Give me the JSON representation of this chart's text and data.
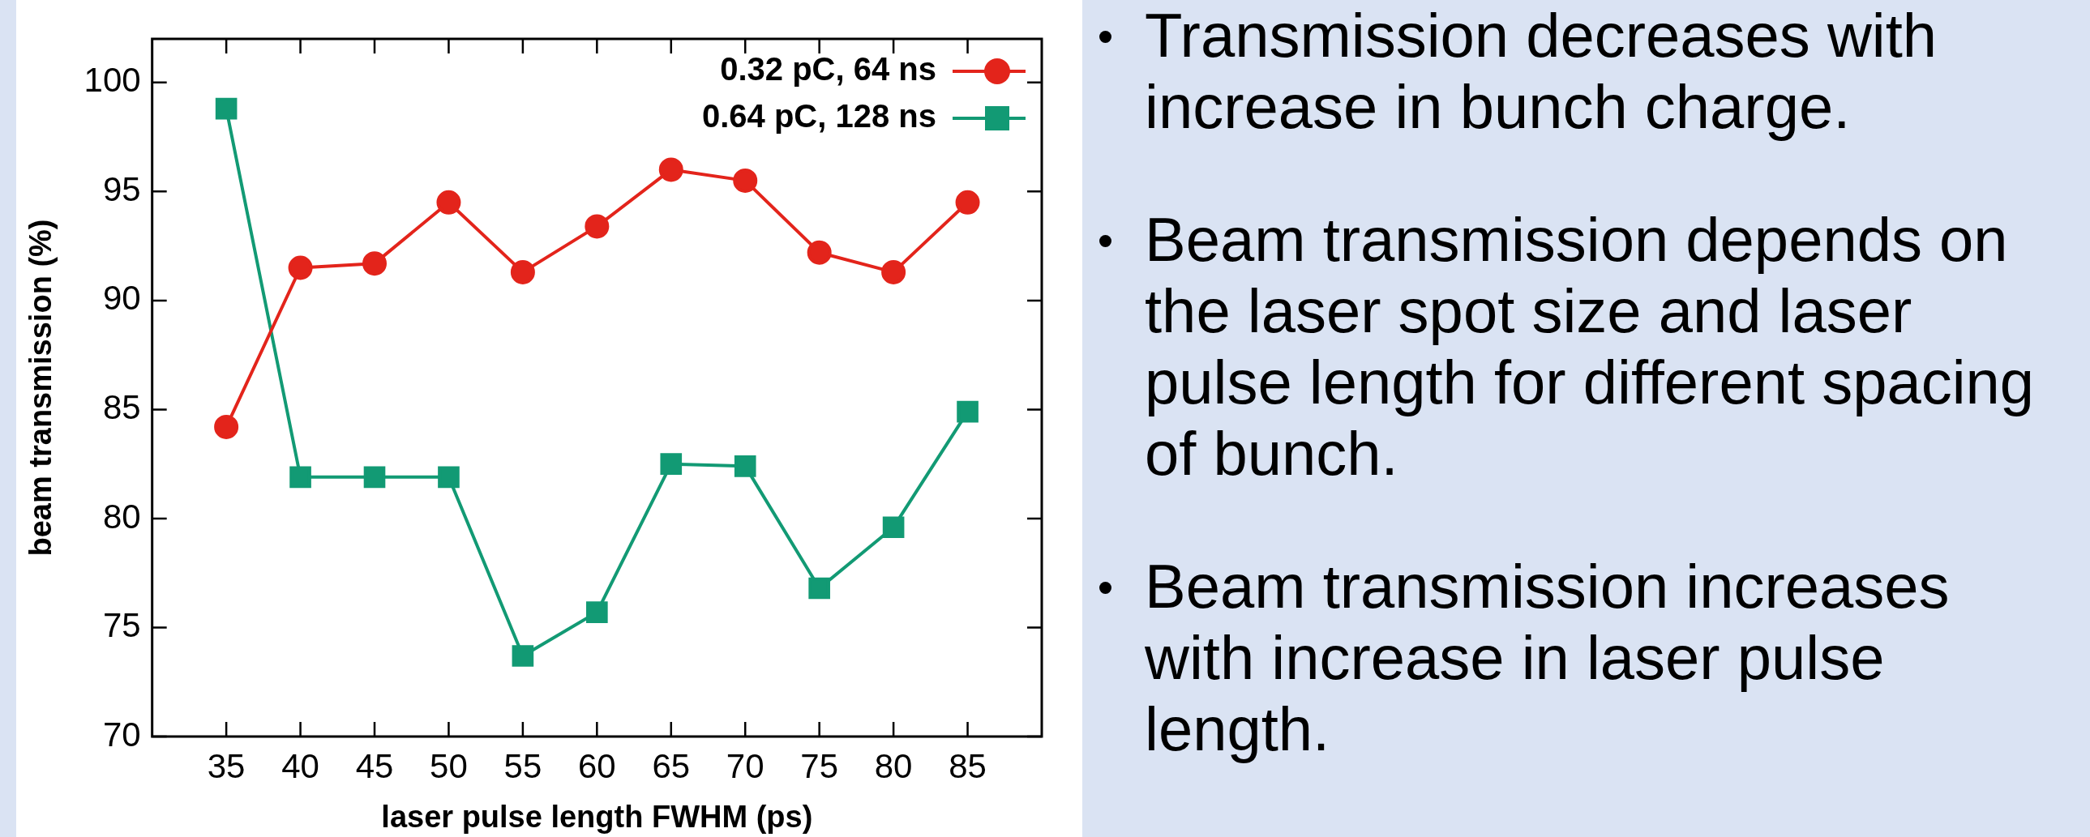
{
  "chart_data": {
    "type": "line",
    "xlabel": "laser pulse length FWHM (ps)",
    "ylabel": "beam transmission (%)",
    "x": [
      35,
      40,
      45,
      50,
      55,
      60,
      65,
      70,
      75,
      80,
      85
    ],
    "series": [
      {
        "name": "0.32 pC, 64 ns",
        "color": "#e3241b",
        "marker": "circle",
        "values": [
          84.2,
          91.5,
          91.7,
          94.5,
          91.3,
          93.4,
          96.0,
          95.5,
          92.2,
          91.3,
          94.5
        ]
      },
      {
        "name": "0.64 pC, 128 ns",
        "color": "#129a74",
        "marker": "square",
        "values": [
          98.8,
          81.9,
          81.9,
          81.9,
          73.7,
          75.7,
          82.5,
          82.4,
          76.8,
          79.6,
          84.9
        ]
      }
    ],
    "xlim": [
      30,
      90
    ],
    "xticks": [
      35,
      40,
      45,
      50,
      55,
      60,
      65,
      70,
      75,
      80,
      85
    ],
    "ylim": [
      70,
      102
    ],
    "yticks": [
      70,
      75,
      80,
      85,
      90,
      95,
      100
    ],
    "grid": false,
    "legend": "top right",
    "line_style": "solid",
    "annotations": [
      "Transmission decreases with increase in bunch charge.",
      "Beam transmission depends on the laser spot size and laser pulse length for different spacing of bunch.",
      "Beam transmission increases with increase in laser pulse length."
    ]
  }
}
